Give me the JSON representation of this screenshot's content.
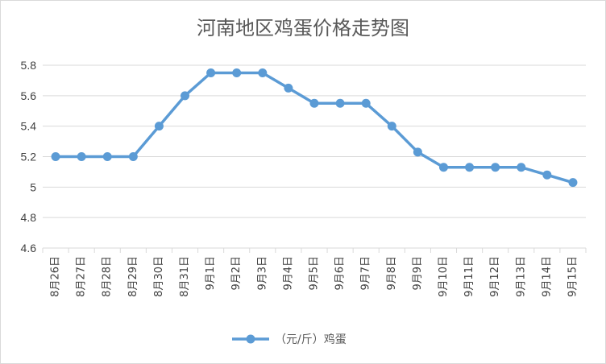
{
  "chart_data": {
    "type": "line",
    "title": "河南地区鸡蛋价格走势图",
    "xlabel": "",
    "ylabel": "",
    "categories": [
      "8月26日",
      "8月27日",
      "8月28日",
      "8月29日",
      "8月30日",
      "8月31日",
      "9月1日",
      "9月2日",
      "9月3日",
      "9月4日",
      "9月5日",
      "9月6日",
      "9月7日",
      "9月8日",
      "9月9日",
      "9月10日",
      "9月11日",
      "9月12日",
      "9月13日",
      "9月14日",
      "9月15日"
    ],
    "series": [
      {
        "name": "（元/斤）鸡蛋",
        "values": [
          5.2,
          5.2,
          5.2,
          5.2,
          5.4,
          5.6,
          5.75,
          5.75,
          5.75,
          5.65,
          5.55,
          5.55,
          5.55,
          5.4,
          5.23,
          5.13,
          5.13,
          5.13,
          5.13,
          5.08,
          5.03
        ]
      }
    ],
    "ylim": [
      4.6,
      5.8
    ],
    "yticks": [
      "4.6",
      "4.8",
      "5",
      "5.2",
      "5.4",
      "5.6",
      "5.8"
    ],
    "grid": true,
    "legend": "bottom",
    "color": "#5b9bd5"
  }
}
